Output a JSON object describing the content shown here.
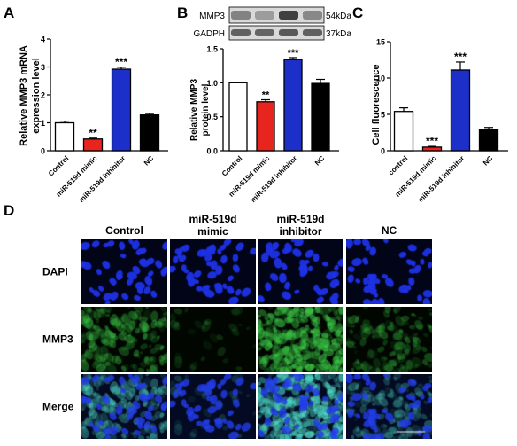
{
  "panel_labels": {
    "A": "A",
    "B": "B",
    "C": "C",
    "D": "D"
  },
  "colors": {
    "control": "#ffffff",
    "mimic": "#e8241e",
    "inhibitor": "#1c2fc8",
    "nc": "#000000",
    "dapi": "#1a2bd6",
    "mmp3": "#38c43c"
  },
  "chart_data": [
    {
      "panel": "A",
      "type": "bar",
      "categories": [
        "Control",
        "miR-519d mimic",
        "miR-519d inhibitor",
        "NC"
      ],
      "values": [
        1.0,
        0.42,
        2.92,
        1.28
      ],
      "errors": [
        0.06,
        0.03,
        0.07,
        0.05
      ],
      "significance": [
        "",
        "**",
        "***",
        ""
      ],
      "ylabel": "Relative MMP3 mRNA expression level",
      "ylabel_lines": [
        "Relative MMP3 mRNA",
        "expression level"
      ],
      "ylim": [
        0,
        4
      ],
      "yticks": [
        "0",
        "1",
        "2",
        "3",
        "4"
      ]
    },
    {
      "panel": "B",
      "type": "bar",
      "categories": [
        "Control",
        "miR-519d mimic",
        "miR-519d inhibitor",
        "NC"
      ],
      "values": [
        1.0,
        0.72,
        1.34,
        0.99
      ],
      "errors": [
        0.0,
        0.03,
        0.03,
        0.06
      ],
      "significance": [
        "",
        "**",
        "***",
        ""
      ],
      "ylabel": "Relative MMP3 protein level",
      "ylabel_lines": [
        "Relative MMP3",
        "protein level"
      ],
      "ylim": [
        0,
        1.5
      ],
      "yticks": [
        "0.0",
        "0.5",
        "1.0",
        "1.5"
      ],
      "blot": {
        "rows": [
          {
            "name": "MMP3",
            "size": "54kDa",
            "intensities": [
              0.45,
              0.32,
              0.78,
              0.42
            ]
          },
          {
            "name": "GADPH",
            "size": "37kDa",
            "intensities": [
              0.62,
              0.6,
              0.66,
              0.62
            ]
          }
        ]
      }
    },
    {
      "panel": "C",
      "type": "bar",
      "categories": [
        "control",
        "miR-519d mimic",
        "miR-519d inhibitor",
        "NC"
      ],
      "values": [
        5.4,
        0.5,
        11.1,
        2.9
      ],
      "errors": [
        0.5,
        0.1,
        1.1,
        0.3
      ],
      "significance": [
        "",
        "***",
        "***",
        ""
      ],
      "ylabel": "Cell fluorescence",
      "ylim": [
        0,
        15
      ],
      "yticks": [
        "0",
        "5",
        "10",
        "15"
      ]
    }
  ],
  "micrograph": {
    "columns": [
      "Control",
      "miR-519d\nmimic",
      "miR-519d\ninhibitor",
      "NC"
    ],
    "rows": [
      "DAPI",
      "MMP3",
      "Merge"
    ],
    "green_intensity": [
      0.55,
      0.08,
      1.0,
      0.4
    ]
  }
}
